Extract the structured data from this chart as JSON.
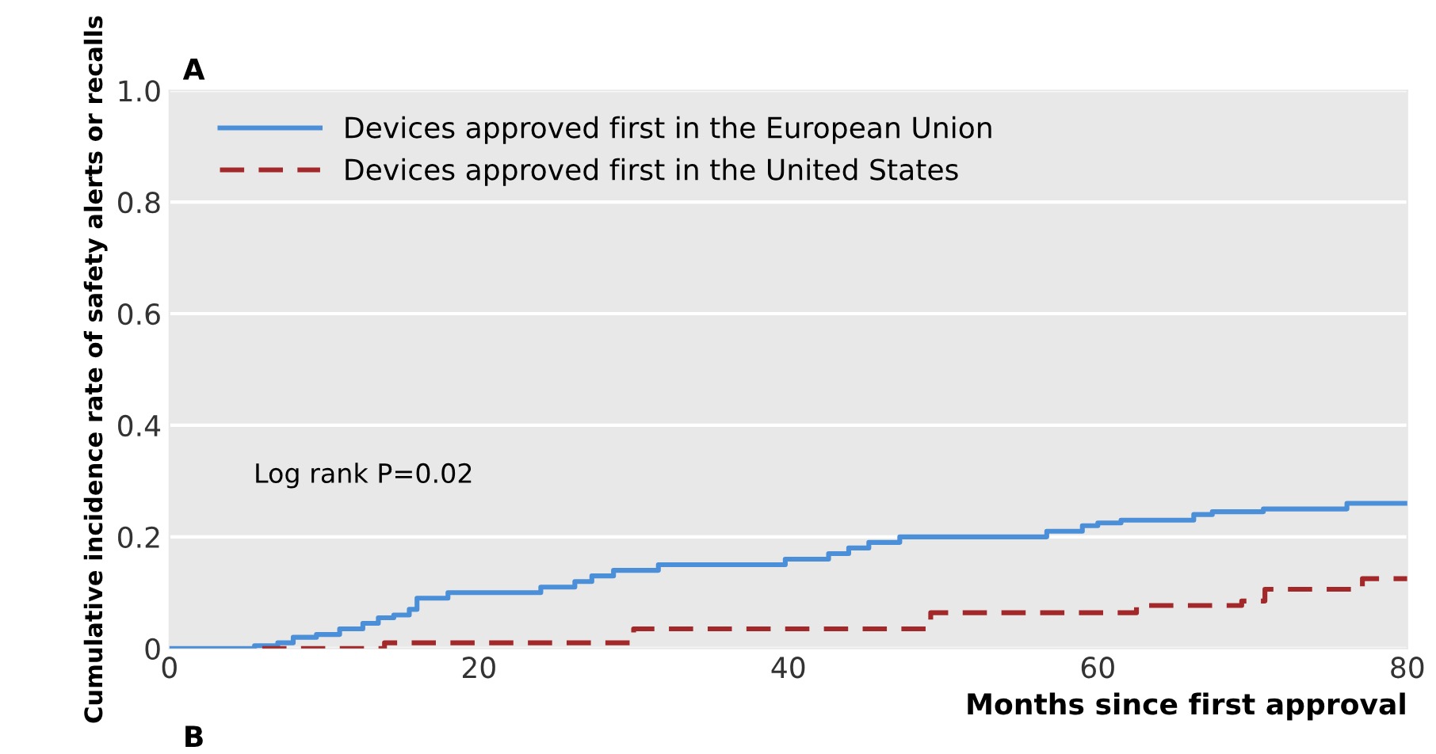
{
  "chart_data": {
    "type": "step",
    "xlabel": "Months since first approval",
    "ylabel": "Cumulative incidence rate of safety alerts or recalls",
    "series": [
      {
        "name": "Devices approved first in the European Union",
        "color": "#4a8fd8",
        "line_style": "solid",
        "x": [
          0,
          5.5,
          7,
          8,
          9.5,
          11,
          12.5,
          13.5,
          14.5,
          15.5,
          16,
          18,
          24,
          26.2,
          27.3,
          28.7,
          31.6,
          39.8,
          42.6,
          43.9,
          45.2,
          47.2,
          56.7,
          59,
          60,
          61.5,
          66.2,
          67.4,
          70.7,
          76.1,
          80
        ],
        "values": [
          0,
          0.005,
          0.01,
          0.02,
          0.025,
          0.035,
          0.045,
          0.055,
          0.06,
          0.07,
          0.09,
          0.1,
          0.11,
          0.12,
          0.13,
          0.14,
          0.15,
          0.16,
          0.17,
          0.18,
          0.19,
          0.2,
          0.21,
          0.22,
          0.225,
          0.23,
          0.24,
          0.245,
          0.25,
          0.26,
          0.26
        ]
      },
      {
        "name": "Devices approved first in the United States",
        "color": "#a3282a",
        "line_style": "dashed",
        "x": [
          6,
          13.9,
          30,
          49.2,
          62.5,
          69.3,
          70.8,
          77.1,
          80
        ],
        "values": [
          0,
          0.01,
          0.035,
          0.064,
          0.077,
          0.085,
          0.106,
          0.125,
          0.125
        ]
      }
    ],
    "xlim": [
      0,
      80
    ],
    "ylim": [
      0,
      1
    ],
    "xticks": [
      0,
      20,
      40,
      60,
      80
    ],
    "yticks": [
      {
        "value": 0,
        "label": "0"
      },
      0.2,
      0.4,
      0.6,
      0.8,
      {
        "value": 1,
        "label": "1.0"
      }
    ],
    "grid": "y",
    "legend": "top left",
    "annotations": [
      "Log rank P=0.02",
      "A",
      "B"
    ]
  }
}
